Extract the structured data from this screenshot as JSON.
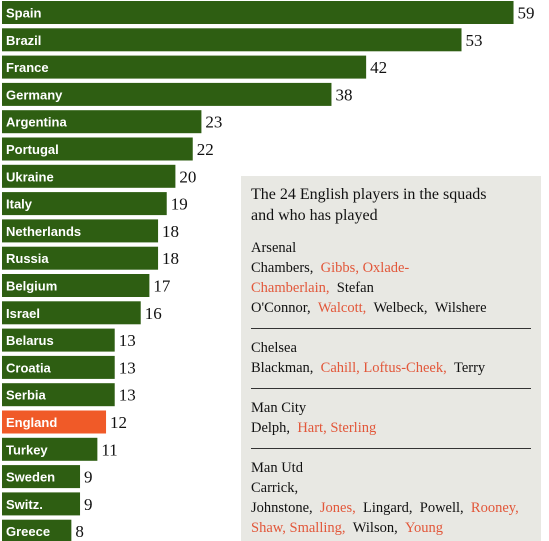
{
  "colors": {
    "bar": "#2e5e12",
    "highlight": "#f05a28",
    "played_text": "#e2573a",
    "panel_bg": "#e8e8e3"
  },
  "chart_data": {
    "type": "bar",
    "orientation": "horizontal",
    "categories": [
      "Spain",
      "Brazil",
      "France",
      "Germany",
      "Argentina",
      "Portugal",
      "Ukraine",
      "Italy",
      "Netherlands",
      "Russia",
      "Belgium",
      "Israel",
      "Belarus",
      "Croatia",
      "Serbia",
      "England",
      "Turkey",
      "Sweden",
      "Switz.",
      "Greece"
    ],
    "values": [
      59,
      53,
      42,
      38,
      23,
      22,
      20,
      19,
      18,
      18,
      17,
      16,
      13,
      13,
      13,
      12,
      11,
      9,
      9,
      8
    ],
    "highlight_category": "England",
    "title": "",
    "xlabel": "",
    "ylabel": "",
    "grid": false,
    "legend": false
  },
  "panel": {
    "title": "The 24 English players in the squads and who has played",
    "clubs": [
      {
        "name": "Arsenal",
        "players": [
          {
            "text": "Chambers,",
            "played": false
          },
          {
            "text": "Gibbs, Oxlade-Chamberlain,",
            "played": true
          },
          {
            "text": "Stefan O'Connor,",
            "played": false
          },
          {
            "text": "Walcott,",
            "played": true
          },
          {
            "text": "Welbeck,",
            "played": false
          },
          {
            "text": "Wilshere",
            "played": false
          }
        ]
      },
      {
        "name": "Chelsea",
        "players": [
          {
            "text": "Blackman,",
            "played": false
          },
          {
            "text": "Cahill, Loftus-Cheek,",
            "played": true
          },
          {
            "text": "Terry",
            "played": false
          }
        ]
      },
      {
        "name": "Man City",
        "players": [
          {
            "text": "Delph,",
            "played": false
          },
          {
            "text": "Hart, Sterling",
            "played": true
          }
        ]
      },
      {
        "name": "Man Utd",
        "players": [
          {
            "text": "Carrick, Johnstone,",
            "played": false
          },
          {
            "text": "Jones,",
            "played": true
          },
          {
            "text": "Lingard,",
            "played": false
          },
          {
            "text": "Powell,",
            "played": false
          },
          {
            "text": "Rooney, Shaw, Smalling,",
            "played": true
          },
          {
            "text": "Wilson,",
            "played": false
          },
          {
            "text": "Young",
            "played": true
          }
        ]
      }
    ]
  }
}
